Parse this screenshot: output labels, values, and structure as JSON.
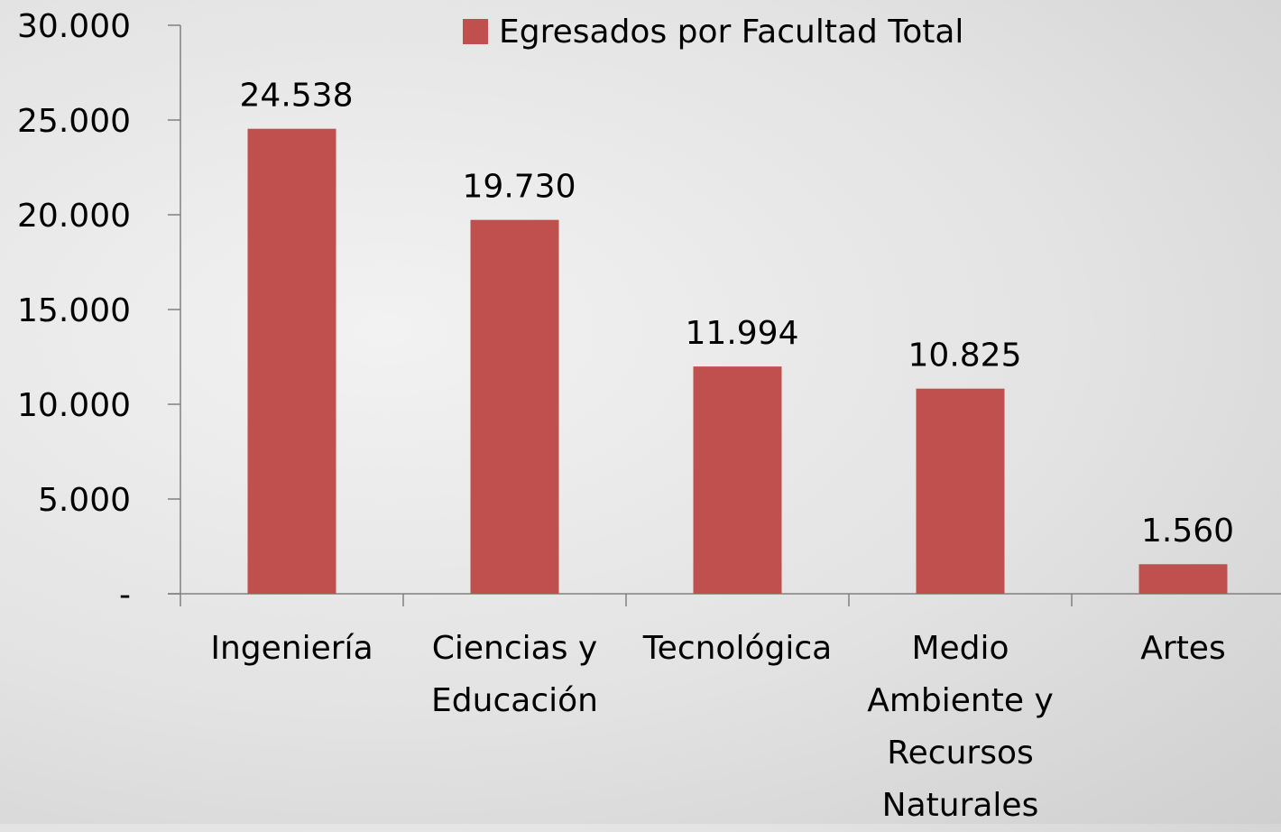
{
  "chart_data": {
    "type": "bar",
    "categories": [
      "Ingeniería",
      "Ciencias y Educación",
      "Tecnológica",
      "Medio Ambiente y Recursos Naturales",
      "Artes"
    ],
    "series": [
      {
        "name": "Egresados por Facultad Total",
        "color": "#c0504d",
        "values": [
          24538,
          19730,
          11994,
          10825,
          1560
        ],
        "value_labels": [
          "24.538",
          "19.730",
          "11.994",
          "10.825",
          "1.560"
        ]
      }
    ],
    "ylim": [
      0,
      30000
    ],
    "yticks": [
      {
        "value": 0,
        "label": "-"
      },
      {
        "value": 5000,
        "label": "5.000"
      },
      {
        "value": 10000,
        "label": "10.000"
      },
      {
        "value": 15000,
        "label": "15.000"
      },
      {
        "value": 20000,
        "label": "20.000"
      },
      {
        "value": 25000,
        "label": "25.000"
      },
      {
        "value": 30000,
        "label": "30.000"
      }
    ],
    "legend": "top"
  }
}
